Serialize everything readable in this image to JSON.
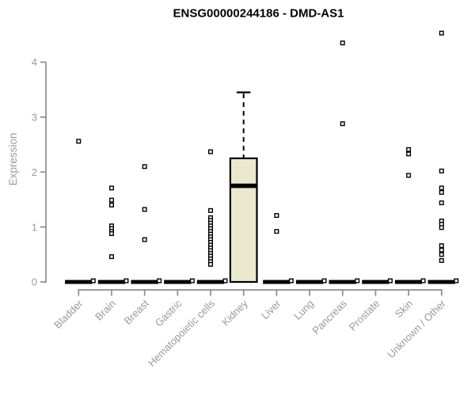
{
  "chart_data": {
    "type": "boxplot",
    "title": "ENSG00000244186 - DMD-AS1",
    "ylabel": "Expression",
    "xlabel": "",
    "ylim": [
      0,
      4.7
    ],
    "yticks": [
      0,
      1,
      2,
      3,
      4
    ],
    "grid": false,
    "legend": false,
    "categories": [
      "Bladder",
      "Brain",
      "Breast",
      "Gastric",
      "Hematopoietic cells",
      "Kidney",
      "Liver",
      "Lung",
      "Pancreas",
      "Prostate",
      "Skin",
      "Unknown / Other"
    ],
    "series": [
      {
        "category": "Bladder",
        "q1": 0,
        "median": 0,
        "q3": 0,
        "whisker_low": 0,
        "whisker_high": 0,
        "outliers": [
          2.56,
          0.02
        ]
      },
      {
        "category": "Brain",
        "q1": 0,
        "median": 0,
        "q3": 0,
        "whisker_low": 0,
        "whisker_high": 0,
        "outliers": [
          1.71,
          1.49,
          1.4,
          1.02,
          0.97,
          0.92,
          0.88,
          0.46,
          0.02
        ]
      },
      {
        "category": "Breast",
        "q1": 0,
        "median": 0,
        "q3": 0,
        "whisker_low": 0,
        "whisker_high": 0,
        "outliers": [
          2.1,
          1.32,
          0.77,
          0.02
        ]
      },
      {
        "category": "Gastric",
        "q1": 0,
        "median": 0,
        "q3": 0,
        "whisker_low": 0,
        "whisker_high": 0,
        "outliers": [
          0.02
        ]
      },
      {
        "category": "Hematopoietic cells",
        "q1": 0,
        "median": 0,
        "q3": 0,
        "whisker_low": 0,
        "whisker_high": 0,
        "outliers": [
          2.37,
          1.3,
          1.17,
          1.12,
          1.07,
          1.02,
          0.97,
          0.92,
          0.87,
          0.82,
          0.77,
          0.72,
          0.67,
          0.62,
          0.57,
          0.52,
          0.47,
          0.42,
          0.37,
          0.32,
          0.02
        ]
      },
      {
        "category": "Kidney",
        "q1": 0,
        "median": 1.75,
        "q3": 2.25,
        "whisker_low": 0,
        "whisker_high": 3.45,
        "outliers": []
      },
      {
        "category": "Liver",
        "q1": 0,
        "median": 0,
        "q3": 0,
        "whisker_low": 0,
        "whisker_high": 0,
        "outliers": [
          1.21,
          0.92,
          0.02
        ]
      },
      {
        "category": "Lung",
        "q1": 0,
        "median": 0,
        "q3": 0,
        "whisker_low": 0,
        "whisker_high": 0,
        "outliers": [
          0.02
        ]
      },
      {
        "category": "Pancreas",
        "q1": 0,
        "median": 0,
        "q3": 0,
        "whisker_low": 0,
        "whisker_high": 0,
        "outliers": [
          4.35,
          2.88,
          0.02
        ]
      },
      {
        "category": "Prostate",
        "q1": 0,
        "median": 0,
        "q3": 0,
        "whisker_low": 0,
        "whisker_high": 0,
        "outliers": [
          0.02
        ]
      },
      {
        "category": "Skin",
        "q1": 0,
        "median": 0,
        "q3": 0,
        "whisker_low": 0,
        "whisker_high": 0,
        "outliers": [
          2.41,
          2.33,
          1.94,
          0.02
        ]
      },
      {
        "category": "Unknown / Other",
        "q1": 0,
        "median": 0,
        "q3": 0,
        "whisker_low": 0,
        "whisker_high": 0,
        "outliers": [
          4.53,
          2.02,
          1.71,
          1.63,
          1.44,
          1.11,
          1.05,
          0.99,
          0.66,
          0.58,
          0.5,
          0.39,
          0.02
        ]
      }
    ],
    "colors": {
      "title": "#000000",
      "axis": "#8c8c8c",
      "tick_label": "#9a9a9a",
      "box_fill": "#ece8cf",
      "box_stroke": "#000000",
      "median": "#000000",
      "outlier_stroke": "#000000",
      "outlier_fill": "#ffffff",
      "background": "#ffffff"
    }
  }
}
